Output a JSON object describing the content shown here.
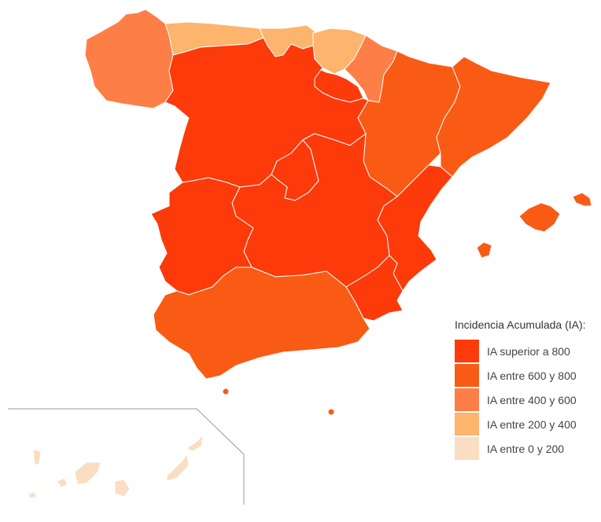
{
  "legend": {
    "title": "Incidencia Acumulada (IA):",
    "items": [
      {
        "label": "IA superior a 800",
        "color": "#fc3a0a"
      },
      {
        "label": "IA entre 600 y 800",
        "color": "#f95b14"
      },
      {
        "label": "IA entre 400 y 600",
        "color": "#fd7e46"
      },
      {
        "label": "IA entre 200 y 400",
        "color": "#fdb46c"
      },
      {
        "label": "IA entre 0 y 200",
        "color": "#f9dec2"
      }
    ]
  },
  "regions": [
    {
      "name": "Galicia",
      "level": 2
    },
    {
      "name": "Asturias",
      "level": 3
    },
    {
      "name": "Cantabria",
      "level": 3
    },
    {
      "name": "País Vasco",
      "level": 3
    },
    {
      "name": "Navarra",
      "level": 2
    },
    {
      "name": "La Rioja",
      "level": 0
    },
    {
      "name": "Castilla y León",
      "level": 0
    },
    {
      "name": "Aragón",
      "level": 1
    },
    {
      "name": "Cataluña",
      "level": 1
    },
    {
      "name": "Madrid",
      "level": 0
    },
    {
      "name": "Castilla-La Mancha",
      "level": 0
    },
    {
      "name": "Extremadura",
      "level": 0
    },
    {
      "name": "Comunitat Valenciana",
      "level": 0
    },
    {
      "name": "Región de Murcia",
      "level": 0
    },
    {
      "name": "Andalucía",
      "level": 1
    },
    {
      "name": "Illes Balears",
      "level": 1
    },
    {
      "name": "Ceuta",
      "level": 1
    },
    {
      "name": "Melilla",
      "level": 1
    },
    {
      "name": "Canarias",
      "level": 4
    }
  ]
}
